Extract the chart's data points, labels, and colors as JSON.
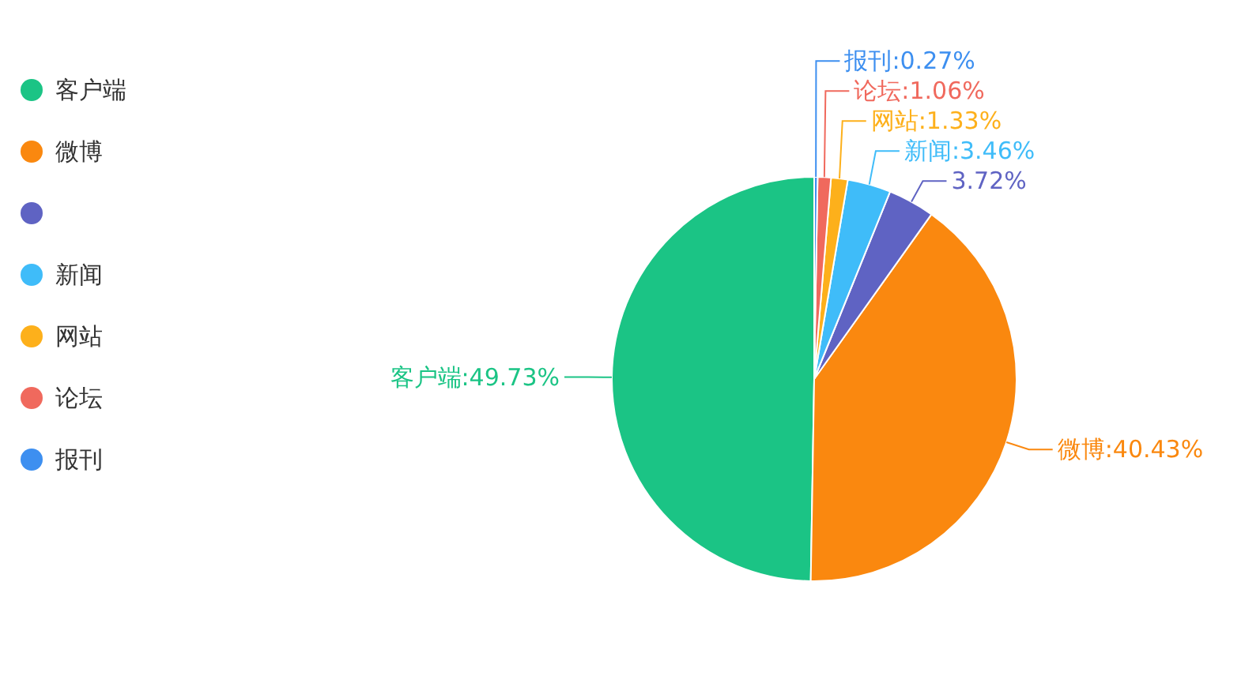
{
  "chart_data": {
    "type": "pie",
    "categories": [
      "客户端",
      "微博",
      null,
      "新闻",
      "网站",
      "论坛",
      "报刊"
    ],
    "values": [
      49.73,
      40.43,
      3.72,
      3.46,
      1.33,
      1.06,
      0.27
    ],
    "colors": [
      "#1bc485",
      "#fa880f",
      "#5f63c3",
      "#3fbcf9",
      "#fdb01b",
      "#f0695d",
      "#3d8ff0"
    ],
    "value_labels": [
      "客户端:49.73%",
      "微博:40.43%",
      "3.72%",
      "新闻:3.46%",
      "网站:1.33%",
      "论坛:1.06%",
      "报刊:0.27%"
    ],
    "legend": "left"
  }
}
